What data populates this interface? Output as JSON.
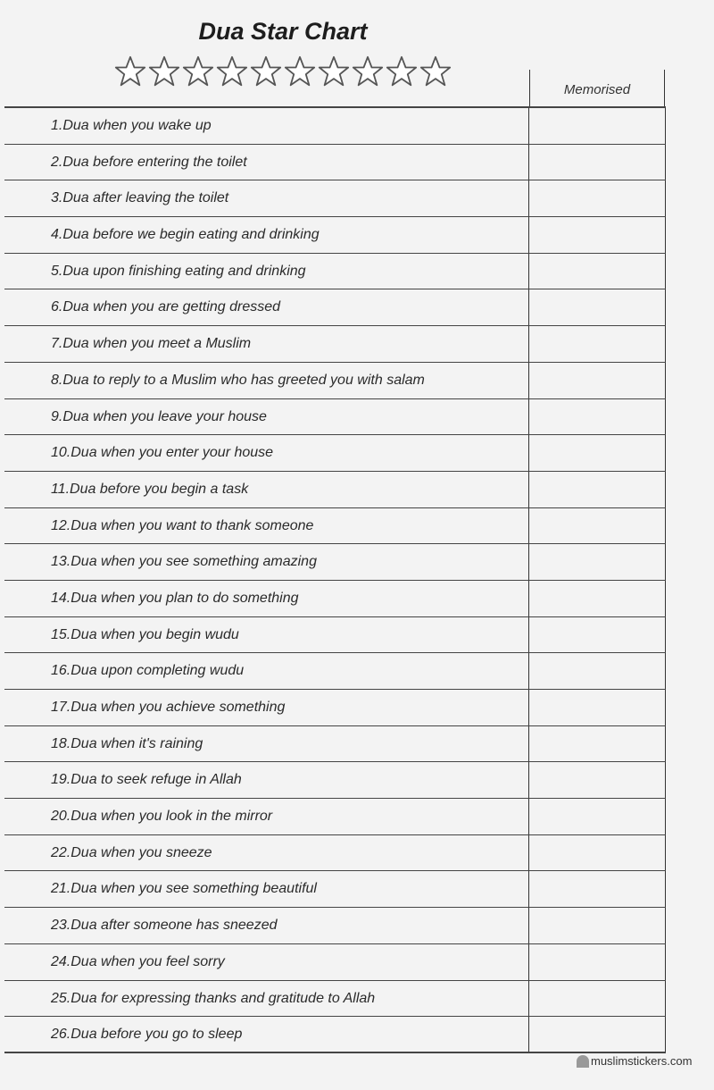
{
  "title": "Dua Star Chart",
  "stars": {
    "count": 10,
    "filled": 0
  },
  "column_header": "Memorised",
  "rows": [
    "1.Dua when you wake up",
    "2.Dua before entering the toilet",
    "3.Dua after leaving the toilet",
    "4.Dua before we begin eating and drinking",
    "5.Dua upon finishing eating and drinking",
    "6.Dua when you are getting dressed",
    "7.Dua when you meet a Muslim",
    "8.Dua to reply to a Muslim who has greeted you with salam",
    "9.Dua when you leave your house",
    "10.Dua when you enter your house",
    "11.Dua before you begin a task",
    "12.Dua when you want to thank someone",
    "13.Dua when you see something amazing",
    "14.Dua when you plan to do something",
    "15.Dua when you begin wudu",
    "16.Dua upon completing wudu",
    "17.Dua when you achieve something",
    "18.Dua when it's raining",
    "19.Dua to seek refuge in Allah",
    "20.Dua when you look in the mirror",
    "22.Dua when you sneeze",
    "21.Dua when you see something beautiful",
    "23.Dua after someone has sneezed",
    "24.Dua when you feel sorry",
    "25.Dua for expressing thanks and gratitude to Allah",
    "26.Dua before you go to sleep"
  ],
  "footer": "muslimstickers.com"
}
